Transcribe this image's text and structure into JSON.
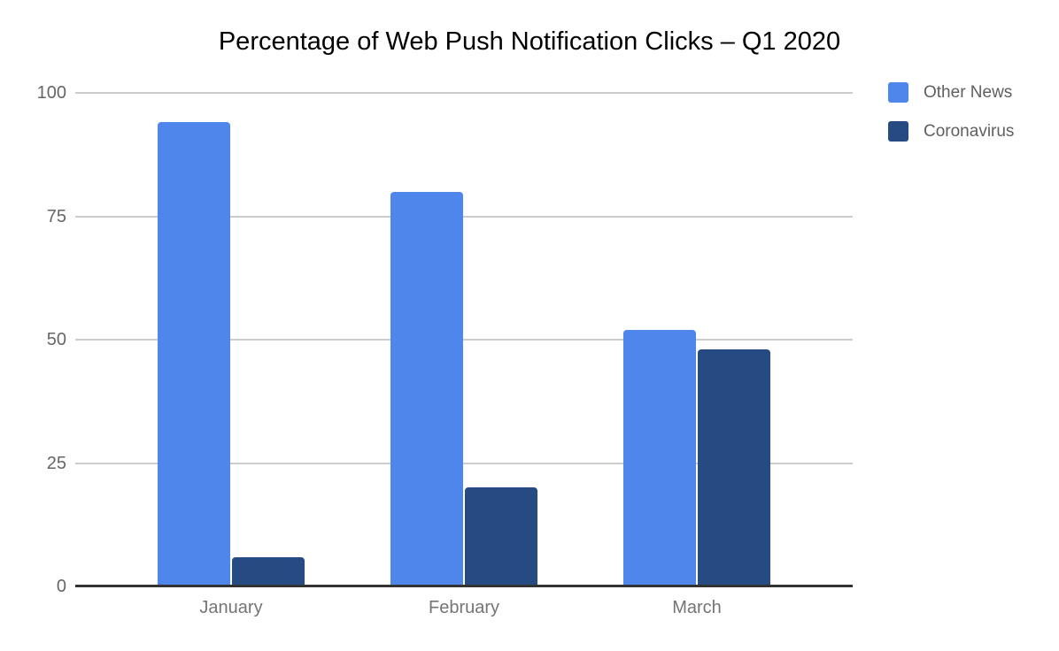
{
  "chart_data": {
    "type": "bar",
    "title": "Percentage of Web Push Notification Clicks – Q1 2020",
    "categories": [
      "January",
      "February",
      "March"
    ],
    "series": [
      {
        "name": "Other News",
        "color": "#4E86EC",
        "values": [
          94,
          80,
          52
        ]
      },
      {
        "name": "Coronavirus",
        "color": "#264A82",
        "values": [
          6,
          20,
          48
        ]
      }
    ],
    "xlabel": "",
    "ylabel": "",
    "ylim": [
      0,
      100
    ],
    "yticks": [
      0,
      25,
      50,
      75,
      100
    ],
    "grid": true,
    "legend_position": "top-right",
    "colors": {
      "grid_line": "#cccccc",
      "axis_line": "#333333",
      "y_tick_label": "#666666",
      "category_label": "#757575",
      "legend_label": "#5f5f5f",
      "title": "#000000",
      "background": "#ffffff"
    }
  }
}
